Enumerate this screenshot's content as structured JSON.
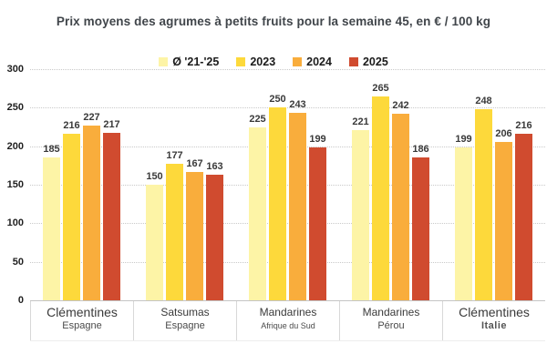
{
  "chart_data": {
    "type": "bar",
    "title": "Prix moyens des agrumes à petits fruits pour la semaine 45, en € / 100 kg",
    "unit": "€ / 100 kg",
    "legend_position": "top",
    "grid": "horizontal-dotted",
    "ylim": [
      0,
      300
    ],
    "yticks": [
      0,
      50,
      100,
      150,
      200,
      250,
      300
    ],
    "categories": [
      {
        "name": "Clémentines",
        "region": "Espagne"
      },
      {
        "name": "Satsumas",
        "region": "Espagne"
      },
      {
        "name": "Mandarines",
        "region": "Afrique du Sud"
      },
      {
        "name": "Mandarines",
        "region": "Pérou"
      },
      {
        "name": "Clémentines",
        "region": "Italie"
      }
    ],
    "series": [
      {
        "name": "Ø '21-'25",
        "color": "#fdf4a6",
        "values": [
          185,
          150,
          225,
          221,
          199
        ]
      },
      {
        "name": "2023",
        "color": "#fdd93b",
        "values": [
          216,
          177,
          250,
          265,
          248
        ]
      },
      {
        "name": "2024",
        "color": "#f9ad3c",
        "values": [
          227,
          167,
          243,
          242,
          206
        ]
      },
      {
        "name": "2025",
        "color": "#d04b2f",
        "values": [
          217,
          163,
          199,
          186,
          216
        ]
      }
    ]
  }
}
